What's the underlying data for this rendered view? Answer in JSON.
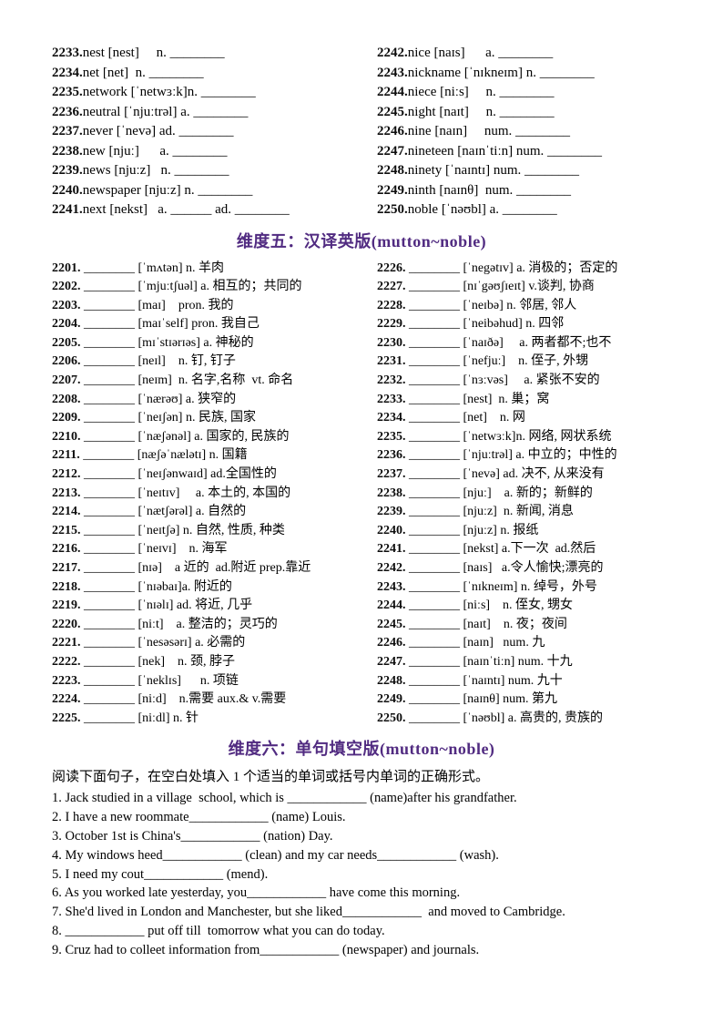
{
  "doc": {
    "accent_color": "#512b81",
    "heading_dim5": "维度五：汉译英版(mutton~noble)",
    "heading_dim6": "维度六：单句填空版(mutton~noble)",
    "instruction": "阅读下面句子，在空白处填入 1 个适当的单词或括号内单词的正确形式。"
  },
  "section_word_to_meaning": {
    "left": [
      {
        "num": "2233.",
        "text": "nest [nest]     n. ________"
      },
      {
        "num": "2234.",
        "text": "net [net]  n. ________"
      },
      {
        "num": "2235.",
        "text": "network [ˈnetwɜːk]n. ________"
      },
      {
        "num": "2236.",
        "text": "neutral [ˈnjuːtrəl] a. ________"
      },
      {
        "num": "2237.",
        "text": "never [ˈnevə] ad. ________"
      },
      {
        "num": "2238.",
        "text": "new [njuː]      a. ________"
      },
      {
        "num": "2239.",
        "text": "news [njuːz]   n. ________"
      },
      {
        "num": "2240.",
        "text": "newspaper [njuːz] n. ________"
      },
      {
        "num": "2241.",
        "text": "next [nekst]   a. ______ ad. ________"
      }
    ],
    "right": [
      {
        "num": "2242.",
        "text": "nice [naɪs]      a. ________"
      },
      {
        "num": "2243.",
        "text": "nickname [ˈnɪkneɪm] n. ________"
      },
      {
        "num": "2244.",
        "text": "niece [niːs]     n. ________"
      },
      {
        "num": "2245.",
        "text": "night [naɪt]     n. ________"
      },
      {
        "num": "2246.",
        "text": "nine [naɪn]     num. ________"
      },
      {
        "num": "2247.",
        "text": "nineteen [naɪnˈtiːn] num. ________"
      },
      {
        "num": "2248.",
        "text": "ninety [ˈnaɪntɪ] num. ________"
      },
      {
        "num": "2249.",
        "text": "ninth [naɪnθ]  num. ________"
      },
      {
        "num": "2250.",
        "text": "noble [ˈnəʊbl] a. ________"
      }
    ]
  },
  "section_meaning_to_word": {
    "left": [
      {
        "num": "2201.",
        "text": " ________ [ˈmʌtən] n. 羊肉"
      },
      {
        "num": "2202.",
        "text": " ________ [ˈmjuːtʃuəl] a. 相互的；共同的"
      },
      {
        "num": "2203.",
        "text": " ________ [maɪ]    pron. 我的"
      },
      {
        "num": "2204.",
        "text": " ________ [maɪˈself] pron. 我自己"
      },
      {
        "num": "2205.",
        "text": " ________ [mɪˈstɪərɪəs] a. 神秘的"
      },
      {
        "num": "2206.",
        "text": " ________ [neɪl]    n. 钉, 钉子"
      },
      {
        "num": "2207.",
        "text": " ________ [neɪm]  n. 名字,名称  vt. 命名"
      },
      {
        "num": "2208.",
        "text": " ________ [ˈnærəʊ] a. 狭窄的"
      },
      {
        "num": "2209.",
        "text": " ________ [ˈneɪʃən] n. 民族, 国家"
      },
      {
        "num": "2210.",
        "text": " ________ [ˈnæʃənəl] a. 国家的, 民族的"
      },
      {
        "num": "2211.",
        "text": " ________ [næʃəˈnælətɪ] n. 国籍"
      },
      {
        "num": "2212.",
        "text": " ________ [ˈneɪʃənwaɪd] ad.全国性的"
      },
      {
        "num": "2213.",
        "text": " ________ [ˈneɪtɪv]     a. 本土的, 本国的"
      },
      {
        "num": "2214.",
        "text": " ________ [ˈnætʃərəl] a. 自然的"
      },
      {
        "num": "2215.",
        "text": " ________ [ˈneɪtʃə] n. 自然, 性质, 种类"
      },
      {
        "num": "2216.",
        "text": " ________ [ˈneɪvɪ]    n. 海军"
      },
      {
        "num": "2217.",
        "text": " ________ [nɪə]    a 近的  ad.附近 prep.靠近"
      },
      {
        "num": "2218.",
        "text": " ________ [ˈnɪəbaɪ]a. 附近的"
      },
      {
        "num": "2219.",
        "text": " ________ [ˈnɪəlɪ] ad. 将近, 几乎"
      },
      {
        "num": "2220.",
        "text": " ________ [niːt]    a. 整洁的；灵巧的"
      },
      {
        "num": "2221.",
        "text": " ________ [ˈnesəsərɪ] a. 必需的"
      },
      {
        "num": "2222.",
        "text": " ________ [nek]    n. 颈, 脖子"
      },
      {
        "num": "2223.",
        "text": " ________ [ˈneklɪs]      n. 项链"
      },
      {
        "num": "2224.",
        "text": " ________ [niːd]    n.需要 aux.& v.需要"
      },
      {
        "num": "2225.",
        "text": " ________ [niːdl] n. 针"
      }
    ],
    "right": [
      {
        "num": "2226.",
        "text": " ________ [ˈnegətɪv] a. 消极的；否定的"
      },
      {
        "num": "2227.",
        "text": " ________ [nɪˈgəʊʃɪeɪt] v.谈判, 协商"
      },
      {
        "num": "2228.",
        "text": " ________ [ˈneɪbə] n. 邻居, 邻人"
      },
      {
        "num": "2229.",
        "text": " ________ [ˈneibəhud] n. 四邻"
      },
      {
        "num": "2230.",
        "text": " ________ [ˈnaɪðə]     a. 两者都不;也不"
      },
      {
        "num": "2231.",
        "text": " ________ [ˈnefjuː]    n. 侄子, 外甥"
      },
      {
        "num": "2232.",
        "text": " ________ [ˈnɜːvəs]     a. 紧张不安的"
      },
      {
        "num": "2233.",
        "text": " ________ [nest]  n. 巢；窝"
      },
      {
        "num": "2234.",
        "text": " ________ [net]    n. 网"
      },
      {
        "num": "2235.",
        "text": " ________ [ˈnetwɜːk]n. 网络, 网状系统"
      },
      {
        "num": "2236.",
        "text": " ________ [ˈnjuːtrəl] a. 中立的；中性的"
      },
      {
        "num": "2237.",
        "text": " ________ [ˈnevə] ad. 决不, 从来没有"
      },
      {
        "num": "2238.",
        "text": " ________ [njuː]    a. 新的；新鲜的"
      },
      {
        "num": "2239.",
        "text": " ________ [njuːz]  n. 新闻, 消息"
      },
      {
        "num": "2240.",
        "text": " ________ [njuːz] n. 报纸"
      },
      {
        "num": "2241.",
        "text": " ________ [nekst] a.下一次  ad.然后"
      },
      {
        "num": "2242.",
        "text": " ________ [naɪs]   a.令人愉快;漂亮的"
      },
      {
        "num": "2243.",
        "text": " ________ [ˈnɪkneɪm] n. 绰号，外号"
      },
      {
        "num": "2244.",
        "text": " ________ [niːs]    n. 侄女, 甥女"
      },
      {
        "num": "2245.",
        "text": " ________ [naɪt]    n. 夜；夜间"
      },
      {
        "num": "2246.",
        "text": " ________ [naɪn]   num. 九"
      },
      {
        "num": "2247.",
        "text": " ________ [naɪnˈtiːn] num. 十九"
      },
      {
        "num": "2248.",
        "text": " ________ [ˈnaɪntɪ] num. 九十"
      },
      {
        "num": "2249.",
        "text": " ________ [naɪnθ] num. 第九"
      },
      {
        "num": "2250.",
        "text": " ________ [ˈnəʊbl] a. 高贵的, 贵族的"
      }
    ]
  },
  "section_fill_in": {
    "sentences": [
      "1. Jack studied in a village  school, which is ____________ (name)after his grandfather.",
      "2. I have a new roommate____________ (name) Louis.",
      "3. October 1st is China's____________ (nation) Day.",
      "4. My windows heed____________ (clean) and my car needs____________ (wash).",
      "5. I need my cout____________ (mend).",
      "6. As you worked late yesterday, you____________ have come this morning.",
      "7. She'd lived in London and Manchester, but she liked____________  and moved to Cambridge.",
      "8. ____________ put off till  tomorrow what you can do today.",
      "9. Cruz had to colleet information from____________ (newspaper) and journals."
    ]
  }
}
